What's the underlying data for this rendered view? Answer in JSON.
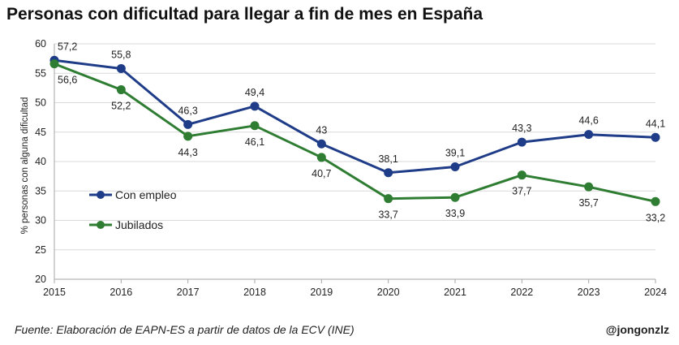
{
  "chart_data": {
    "type": "line",
    "title": "Personas con dificultad para llegar a fin de mes en España",
    "xlabel": "",
    "ylabel": "% personas con alguna dificultad",
    "x": [
      "2015",
      "2016",
      "2017",
      "2018",
      "2019",
      "2020",
      "2021",
      "2022",
      "2023",
      "2024"
    ],
    "ylim": [
      20,
      60
    ],
    "yticks": [
      20,
      25,
      30,
      35,
      40,
      45,
      50,
      55,
      60
    ],
    "grid": true,
    "legend_position": "left-middle",
    "series": [
      {
        "name": "Con empleo",
        "color": "#1f3c88",
        "values": [
          57.2,
          55.8,
          46.3,
          49.4,
          43,
          38.1,
          39.1,
          43.3,
          44.6,
          44.1
        ],
        "labels": [
          "57,2",
          "55,8",
          "46,3",
          "49,4",
          "43",
          "38,1",
          "39,1",
          "43,3",
          "44,6",
          "44,1"
        ]
      },
      {
        "name": "Jubilados",
        "color": "#2e7d32",
        "values": [
          56.6,
          52.2,
          44.3,
          46.1,
          40.7,
          33.7,
          33.9,
          37.7,
          35.7,
          33.2
        ],
        "labels": [
          "56,6",
          "52,2",
          "44,3",
          "46,1",
          "40,7",
          "33,7",
          "33,9",
          "37,7",
          "35,7",
          "33,2"
        ]
      }
    ]
  },
  "footer": {
    "source": "Fuente: Elaboración de EAPN-ES a partir de datos de la ECV (INE)",
    "author": "@jongonzlz"
  }
}
